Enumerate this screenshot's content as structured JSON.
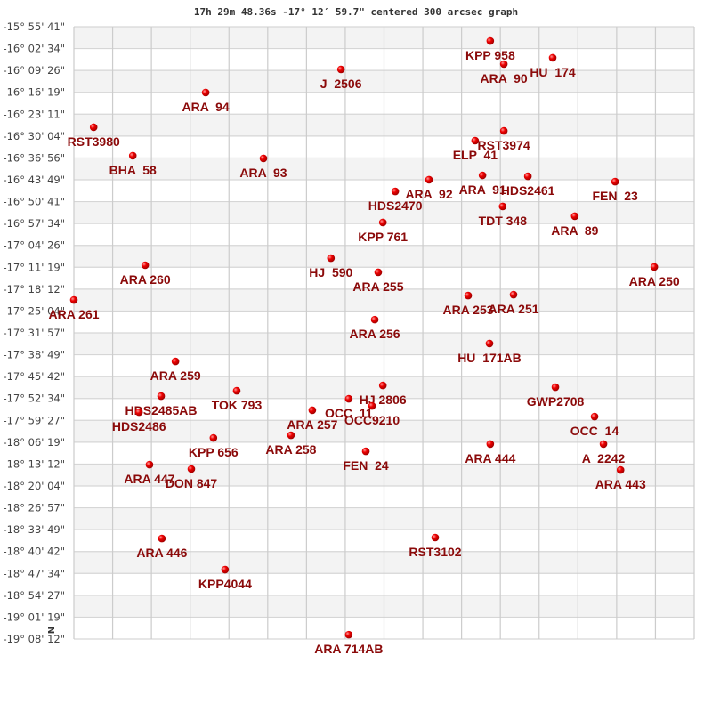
{
  "chart_data": {
    "type": "scatter",
    "title": "17h 29m 48.36s -17° 12′ 59.7\" centered 300 arcsec graph",
    "north_label": "N",
    "grid": true,
    "xlim": [
      0,
      16
    ],
    "ylim": [
      -19.1367,
      -15.9281
    ],
    "y_tick_labels": [
      "-15° 55' 41\"",
      "-16° 02' 34\"",
      "-16° 09' 26\"",
      "-16° 16' 19\"",
      "-16° 23' 11\"",
      "-16° 30' 04\"",
      "-16° 36' 56\"",
      "-16° 43' 49\"",
      "-16° 50' 41\"",
      "-16° 57' 34\"",
      "-17° 04' 26\"",
      "-17° 11' 19\"",
      "-17° 18' 12\"",
      "-17° 25' 04\"",
      "-17° 31' 57\"",
      "-17° 38' 49\"",
      "-17° 45' 42\"",
      "-17° 52' 34\"",
      "-17° 59' 27\"",
      "-18° 06' 19\"",
      "-18° 13' 12\"",
      "-18° 20' 04\"",
      "-18° 26' 57\"",
      "-18° 33' 49\"",
      "-18° 40' 42\"",
      "-18° 47' 34\"",
      "-18° 54' 27\"",
      "-19° 01' 19\"",
      "-19° 08' 12\""
    ],
    "colors": {
      "marker": "#dd0000",
      "label": "#8b0a0a",
      "band": "#f3f3f3",
      "grid": "#d6d6d6"
    },
    "points": [
      {
        "name": "KPP 958",
        "x": 10.74,
        "dec": -16.003
      },
      {
        "name": "ARA  90",
        "x": 11.09,
        "dec": -16.124
      },
      {
        "name": "HU  174",
        "x": 12.35,
        "dec": -16.091
      },
      {
        "name": "J  2506",
        "x": 6.89,
        "dec": -16.152
      },
      {
        "name": "ARA  94",
        "x": 3.4,
        "dec": -16.273
      },
      {
        "name": "RST3980",
        "x": 0.51,
        "dec": -16.455
      },
      {
        "name": "RST3974",
        "x": 11.09,
        "dec": -16.474
      },
      {
        "name": "ELP  41",
        "x": 10.35,
        "dec": -16.525
      },
      {
        "name": "BHA  58",
        "x": 1.52,
        "dec": -16.604
      },
      {
        "name": "ARA  93",
        "x": 4.89,
        "dec": -16.618
      },
      {
        "name": "ARA  91",
        "x": 10.54,
        "dec": -16.707
      },
      {
        "name": "HDS2461",
        "x": 11.71,
        "dec": -16.712
      },
      {
        "name": "ARA  92",
        "x": 9.16,
        "dec": -16.73
      },
      {
        "name": "FEN  23",
        "x": 13.96,
        "dec": -16.74
      },
      {
        "name": "HDS2470",
        "x": 8.29,
        "dec": -16.791
      },
      {
        "name": "TDT 348",
        "x": 11.06,
        "dec": -16.87
      },
      {
        "name": "ARA  89",
        "x": 12.92,
        "dec": -16.921
      },
      {
        "name": "KPP 761",
        "x": 7.97,
        "dec": -16.954
      },
      {
        "name": "HJ  590",
        "x": 6.63,
        "dec": -17.141
      },
      {
        "name": "ARA 260",
        "x": 1.84,
        "dec": -17.178
      },
      {
        "name": "ARA 250",
        "x": 14.97,
        "dec": -17.187
      },
      {
        "name": "ARA 255",
        "x": 7.85,
        "dec": -17.215
      },
      {
        "name": "ARA 253",
        "x": 10.17,
        "dec": -17.337
      },
      {
        "name": "ARA 251",
        "x": 11.34,
        "dec": -17.332
      },
      {
        "name": "ARA 261",
        "x": 0.0,
        "dec": -17.36
      },
      {
        "name": "ARA 256",
        "x": 7.76,
        "dec": -17.463
      },
      {
        "name": "HU  171AB",
        "x": 10.72,
        "dec": -17.588
      },
      {
        "name": "ARA 259",
        "x": 2.62,
        "dec": -17.682
      },
      {
        "name": "HJ 2806",
        "x": 7.97,
        "dec": -17.808
      },
      {
        "name": "GWP2708",
        "x": 12.42,
        "dec": -17.817
      },
      {
        "name": "TOK 793",
        "x": 4.2,
        "dec": -17.836
      },
      {
        "name": "HDS2485AB",
        "x": 2.25,
        "dec": -17.864
      },
      {
        "name": "OCC  11",
        "x": 7.09,
        "dec": -17.878
      },
      {
        "name": "OCC9210",
        "x": 7.69,
        "dec": -17.915
      },
      {
        "name": "ARA 257",
        "x": 6.15,
        "dec": -17.938
      },
      {
        "name": "HDS2486",
        "x": 1.68,
        "dec": -17.948
      },
      {
        "name": "OCC  14",
        "x": 13.43,
        "dec": -17.971
      },
      {
        "name": "KPP 656",
        "x": 3.6,
        "dec": -18.083
      },
      {
        "name": "ARA 258",
        "x": 5.6,
        "dec": -18.069
      },
      {
        "name": "ARA 444",
        "x": 10.74,
        "dec": -18.115
      },
      {
        "name": "A  2242",
        "x": 13.66,
        "dec": -18.115
      },
      {
        "name": "FEN  24",
        "x": 7.53,
        "dec": -18.153
      },
      {
        "name": "ARA 447",
        "x": 1.95,
        "dec": -18.223
      },
      {
        "name": "DON 847",
        "x": 3.03,
        "dec": -18.246
      },
      {
        "name": "ARA 443",
        "x": 14.1,
        "dec": -18.251
      },
      {
        "name": "RST3102",
        "x": 9.32,
        "dec": -18.605
      },
      {
        "name": "ARA 446",
        "x": 2.27,
        "dec": -18.61
      },
      {
        "name": "KPP4044",
        "x": 3.9,
        "dec": -18.773
      },
      {
        "name": "ARA 714AB",
        "x": 7.09,
        "dec": -19.114
      }
    ]
  }
}
